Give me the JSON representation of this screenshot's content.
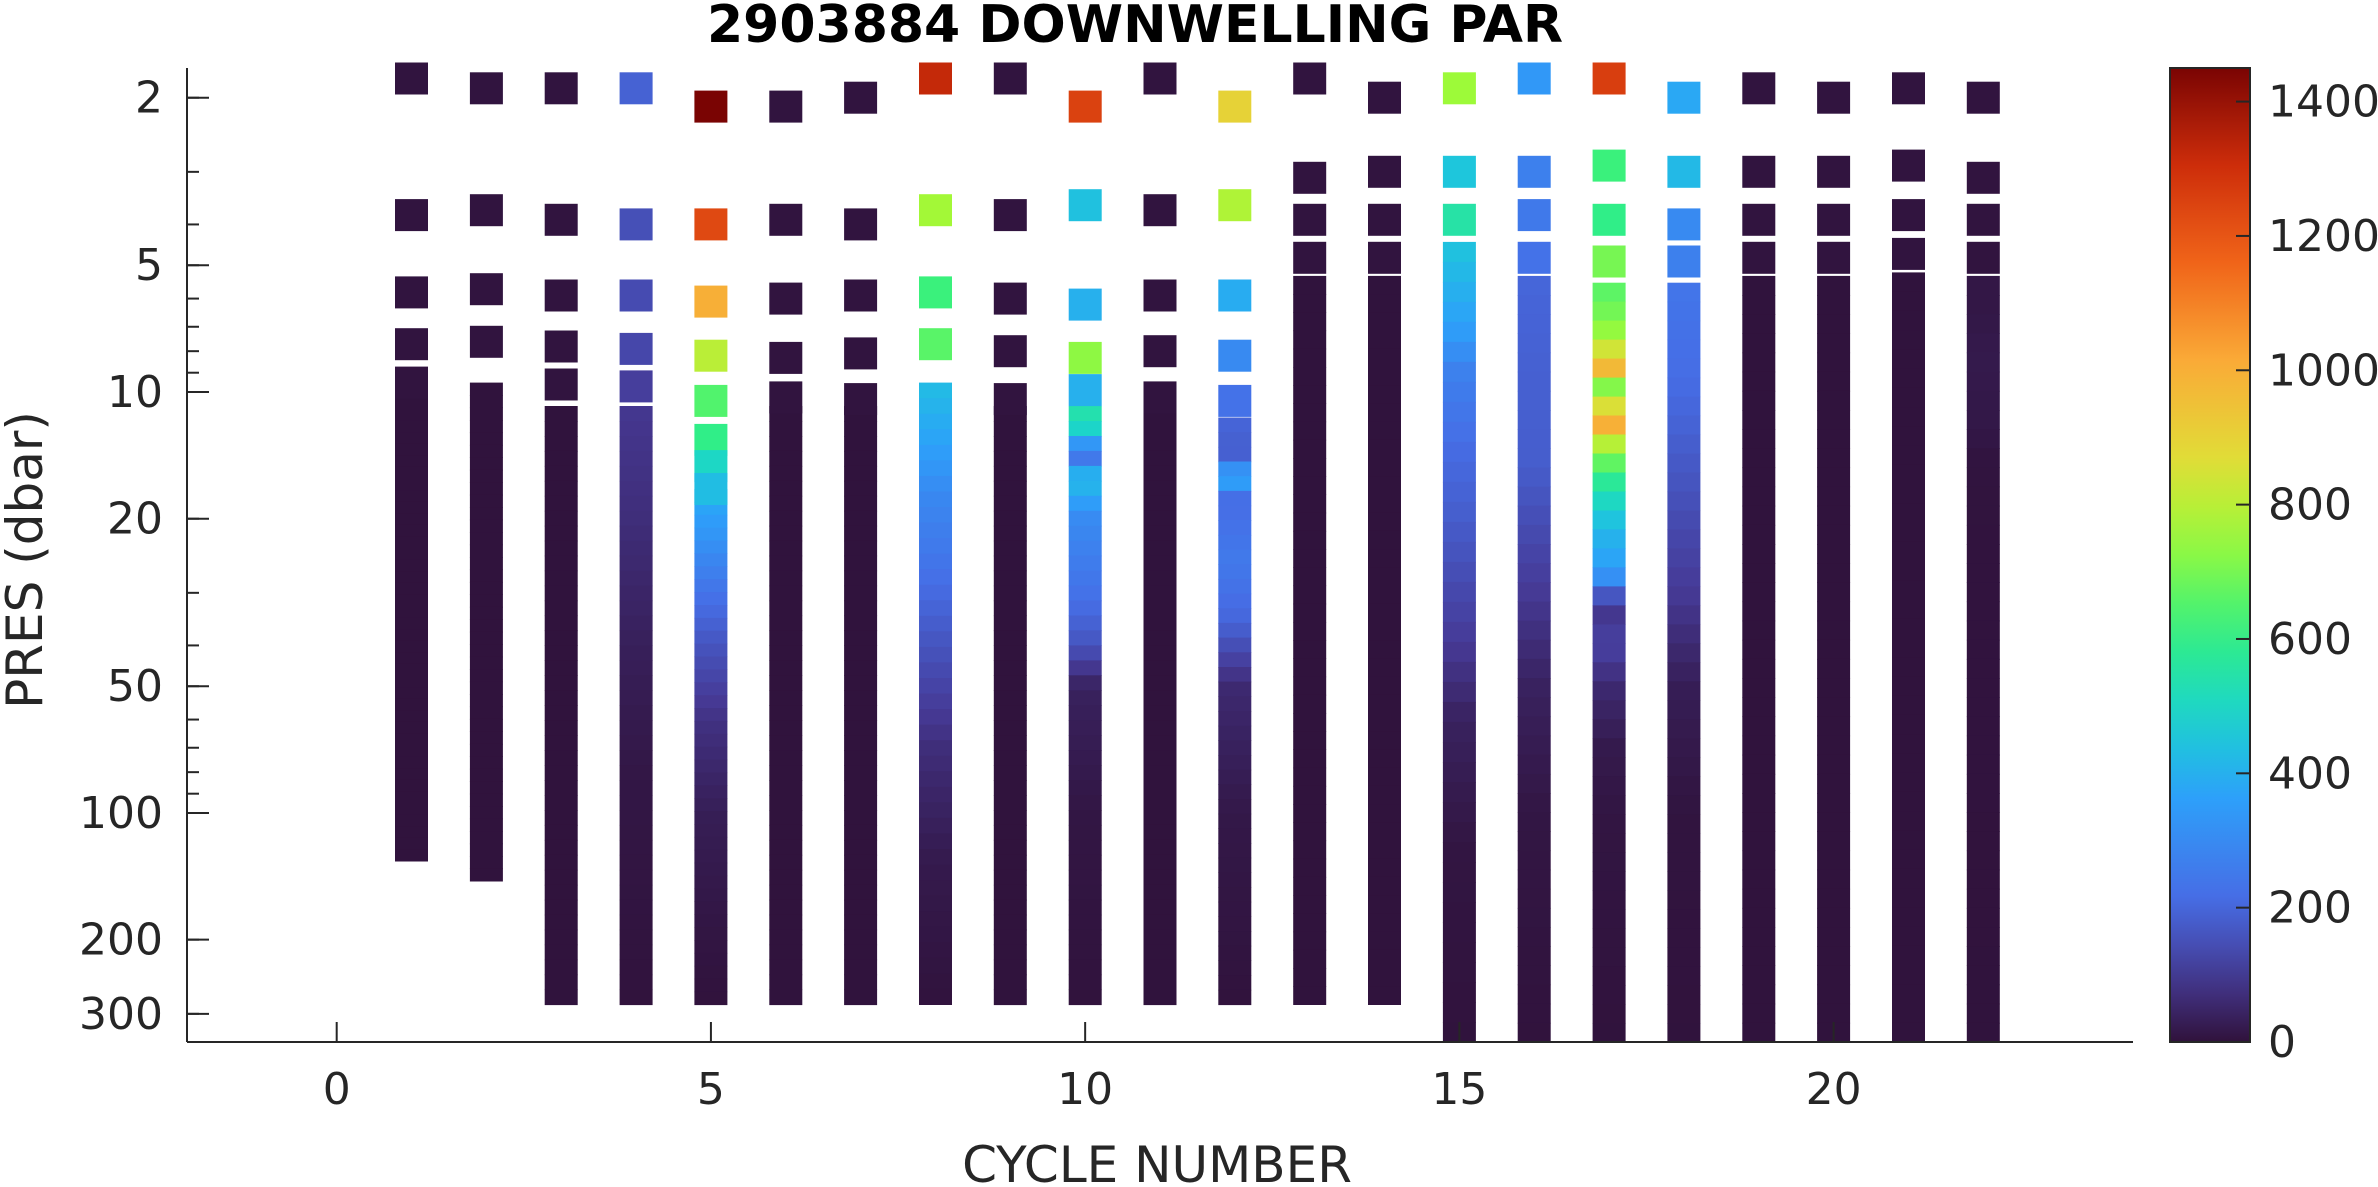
{
  "chart_data": {
    "type": "heatmap",
    "title": "2903884  DOWNWELLING PAR",
    "xlabel": "CYCLE NUMBER",
    "ylabel": "PRES (dbar)",
    "xlim": [
      -2,
      24
    ],
    "ylim": [
      1.7,
      350
    ],
    "yscale": "log",
    "grid": false,
    "xticks": [
      0,
      5,
      10,
      15,
      20
    ],
    "yticks": [
      2,
      5,
      10,
      20,
      50,
      100,
      200,
      300
    ],
    "colorbar": {
      "range": [
        0,
        1450
      ],
      "ticks": [
        0,
        200,
        400,
        600,
        800,
        1000,
        1200,
        1400
      ],
      "colormap": "turbo"
    },
    "series": [
      {
        "cycle": 1,
        "samples": [
          [
            1.8,
            5
          ],
          [
            3.8,
            5
          ],
          [
            5.8,
            5
          ],
          [
            7.7,
            5
          ],
          [
            9.5,
            5
          ]
        ],
        "column": {
          "top": 10.3,
          "bottom": 130,
          "value": 2
        }
      },
      {
        "cycle": 2,
        "samples": [
          [
            1.9,
            5
          ],
          [
            3.7,
            5
          ],
          [
            5.7,
            5
          ],
          [
            7.6,
            5
          ]
        ],
        "column": {
          "top": 9.5,
          "bottom": 145,
          "value": 2
        }
      },
      {
        "cycle": 3,
        "samples": [
          [
            1.9,
            5
          ],
          [
            3.9,
            5
          ],
          [
            5.9,
            5
          ],
          [
            7.8,
            5
          ],
          [
            9.6,
            5
          ]
        ],
        "column": {
          "top": 10.8,
          "bottom": 285,
          "value": 2
        }
      },
      {
        "cycle": 4,
        "samples": [
          [
            1.9,
            190
          ],
          [
            4.0,
            150
          ],
          [
            5.9,
            140
          ],
          [
            7.9,
            130
          ],
          [
            9.7,
            110
          ]
        ],
        "column": {
          "top": 10.8,
          "bottom": 285,
          "profile": [
            [
              10.8,
              95
            ],
            [
              20,
              70
            ],
            [
              40,
              35
            ],
            [
              80,
              12
            ],
            [
              285,
              2
            ]
          ]
        }
      },
      {
        "cycle": 5,
        "samples": [
          [
            2.1,
            1450
          ],
          [
            4.0,
            1230
          ],
          [
            6.1,
            1000
          ],
          [
            8.2,
            800
          ],
          [
            10.5,
            650
          ],
          [
            13,
            600
          ],
          [
            15,
            500
          ],
          [
            17,
            430
          ]
        ],
        "column": {
          "top": 17,
          "bottom": 285,
          "profile": [
            [
              17,
              400
            ],
            [
              22,
              330
            ],
            [
              30,
              230
            ],
            [
              40,
              160
            ],
            [
              60,
              80
            ],
            [
              100,
              30
            ],
            [
              200,
              8
            ],
            [
              285,
              2
            ]
          ]
        }
      },
      {
        "cycle": 6,
        "samples": [
          [
            2.1,
            5
          ],
          [
            3.9,
            5
          ],
          [
            6.0,
            5
          ],
          [
            8.3,
            5
          ],
          [
            10.3,
            5
          ]
        ],
        "column": {
          "top": 10.8,
          "bottom": 285,
          "value": 2
        }
      },
      {
        "cycle": 7,
        "samples": [
          [
            2.0,
            5
          ],
          [
            4.0,
            5
          ],
          [
            5.9,
            5
          ],
          [
            8.1,
            5
          ],
          [
            10.4,
            5
          ]
        ],
        "column": {
          "top": 10.8,
          "bottom": 285,
          "value": 2
        }
      },
      {
        "cycle": 8,
        "samples": [
          [
            1.8,
            1320
          ],
          [
            3.7,
            760
          ],
          [
            5.8,
            620
          ],
          [
            7.7,
            660
          ]
        ],
        "column": {
          "top": 9.5,
          "bottom": 285,
          "profile": [
            [
              9.5,
              430
            ],
            [
              13,
              370
            ],
            [
              18,
              290
            ],
            [
              25,
              240
            ],
            [
              40,
              160
            ],
            [
              70,
              70
            ],
            [
              130,
              20
            ],
            [
              285,
              2
            ]
          ]
        }
      },
      {
        "cycle": 9,
        "samples": [
          [
            1.8,
            5
          ],
          [
            3.8,
            5
          ],
          [
            6.0,
            5
          ],
          [
            8.0,
            5
          ],
          [
            10.4,
            5
          ]
        ],
        "column": {
          "top": 10.8,
          "bottom": 285,
          "value": 2
        }
      },
      {
        "cycle": 10,
        "samples": [
          [
            2.1,
            1250
          ],
          [
            3.6,
            440
          ],
          [
            6.2,
            400
          ],
          [
            8.3,
            730
          ],
          [
            9.9,
            400
          ]
        ],
        "column": {
          "top": 10.8,
          "bottom": 285,
          "profile": [
            [
              10.8,
              560
            ],
            [
              12.5,
              480
            ],
            [
              14,
              200
            ],
            [
              16,
              440
            ],
            [
              20,
              300
            ],
            [
              30,
              230
            ],
            [
              40,
              160
            ],
            [
              50,
              40
            ],
            [
              100,
              10
            ],
            [
              285,
              2
            ]
          ]
        }
      },
      {
        "cycle": 11,
        "samples": [
          [
            1.8,
            5
          ],
          [
            3.7,
            5
          ],
          [
            5.9,
            5
          ],
          [
            8.0,
            5
          ],
          [
            10.3,
            5
          ]
        ],
        "column": {
          "top": 10.8,
          "bottom": 285,
          "value": 2
        }
      },
      {
        "cycle": 12,
        "samples": [
          [
            2.1,
            900
          ],
          [
            3.6,
            780
          ],
          [
            5.9,
            390
          ],
          [
            8.2,
            300
          ],
          [
            10.5,
            230
          ]
        ],
        "column": {
          "top": 11.5,
          "bottom": 285,
          "profile": [
            [
              11.5,
              200
            ],
            [
              14,
              180
            ],
            [
              16,
              400
            ],
            [
              18,
              210
            ],
            [
              25,
              250
            ],
            [
              35,
              200
            ],
            [
              50,
              60
            ],
            [
              100,
              15
            ],
            [
              285,
              2
            ]
          ]
        }
      },
      {
        "cycle": 13,
        "samples": [
          [
            1.8,
            5
          ],
          [
            3.1,
            5
          ],
          [
            3.9,
            5
          ],
          [
            4.8,
            5
          ]
        ],
        "column": {
          "top": 5.3,
          "bottom": 285,
          "value": 2
        }
      },
      {
        "cycle": 14,
        "samples": [
          [
            2.0,
            5
          ],
          [
            3.0,
            5
          ],
          [
            3.9,
            5
          ],
          [
            4.8,
            5
          ]
        ],
        "column": {
          "top": 5.3,
          "bottom": 285,
          "value": 2
        }
      },
      {
        "cycle": 15,
        "samples": [
          [
            1.9,
            750
          ],
          [
            3.0,
            450
          ],
          [
            3.9,
            550
          ]
        ],
        "column": {
          "top": 4.4,
          "bottom": 350,
          "profile": [
            [
              4.4,
              450
            ],
            [
              7,
              360
            ],
            [
              9,
              270
            ],
            [
              14,
              210
            ],
            [
              20,
              180
            ],
            [
              40,
              100
            ],
            [
              60,
              40
            ],
            [
              120,
              8
            ],
            [
              350,
              2
            ]
          ]
        }
      },
      {
        "cycle": 16,
        "samples": [
          [
            1.8,
            340
          ],
          [
            3.0,
            270
          ],
          [
            3.8,
            250
          ],
          [
            4.8,
            230
          ]
        ],
        "column": {
          "top": 5.3,
          "bottom": 350,
          "profile": [
            [
              5.3,
              200
            ],
            [
              8,
              190
            ],
            [
              15,
              180
            ],
            [
              30,
              100
            ],
            [
              50,
              40
            ],
            [
              100,
              10
            ],
            [
              350,
              2
            ]
          ]
        }
      },
      {
        "cycle": 17,
        "samples": [
          [
            1.8,
            1260
          ],
          [
            2.9,
            620
          ],
          [
            3.9,
            600
          ],
          [
            4.9,
            700
          ]
        ],
        "column": {
          "top": 5.5,
          "bottom": 350,
          "profile": [
            [
              5.5,
              650
            ],
            [
              7,
              720
            ],
            [
              8,
              850
            ],
            [
              8.7,
              1000
            ],
            [
              9.3,
              780
            ],
            [
              10,
              680
            ],
            [
              11,
              900
            ],
            [
              11.7,
              1050
            ],
            [
              13,
              820
            ],
            [
              15,
              650
            ],
            [
              17,
              540
            ],
            [
              19,
              480
            ],
            [
              21,
              420
            ],
            [
              26,
              360
            ],
            [
              30,
              250
            ],
            [
              31,
              80
            ],
            [
              40,
              120
            ],
            [
              50,
              60
            ],
            [
              70,
              20
            ],
            [
              100,
              8
            ],
            [
              350,
              2
            ]
          ]
        }
      },
      {
        "cycle": 18,
        "samples": [
          [
            2.0,
            380
          ],
          [
            3.0,
            420
          ],
          [
            4.0,
            300
          ],
          [
            4.9,
            270
          ]
        ],
        "column": {
          "top": 5.5,
          "bottom": 350,
          "profile": [
            [
              5.5,
              240
            ],
            [
              10,
              210
            ],
            [
              15,
              170
            ],
            [
              20,
              140
            ],
            [
              30,
              100
            ],
            [
              50,
              30
            ],
            [
              100,
              5
            ],
            [
              350,
              2
            ]
          ]
        }
      },
      {
        "cycle": 19,
        "samples": [
          [
            1.9,
            5
          ],
          [
            3.0,
            5
          ],
          [
            3.9,
            5
          ],
          [
            4.8,
            5
          ]
        ],
        "column": {
          "top": 5.3,
          "bottom": 350,
          "value": 2
        }
      },
      {
        "cycle": 20,
        "samples": [
          [
            2.0,
            5
          ],
          [
            3.0,
            5
          ],
          [
            3.9,
            5
          ],
          [
            4.8,
            5
          ]
        ],
        "column": {
          "top": 5.3,
          "bottom": 350,
          "value": 2
        }
      },
      {
        "cycle": 21,
        "samples": [
          [
            1.9,
            5
          ],
          [
            2.9,
            5
          ],
          [
            3.8,
            5
          ],
          [
            4.7,
            5
          ]
        ],
        "column": {
          "top": 5.2,
          "bottom": 350,
          "value": 2
        }
      },
      {
        "cycle": 22,
        "samples": [
          [
            2.0,
            5
          ],
          [
            3.1,
            5
          ],
          [
            3.9,
            5
          ],
          [
            4.8,
            5
          ]
        ],
        "column": {
          "top": 5.3,
          "bottom": 350,
          "profile": [
            [
              5.3,
              12
            ],
            [
              6.5,
              12
            ],
            [
              8,
              20
            ],
            [
              12,
              14
            ],
            [
              15,
              4
            ],
            [
              350,
              2
            ]
          ]
        }
      }
    ]
  }
}
